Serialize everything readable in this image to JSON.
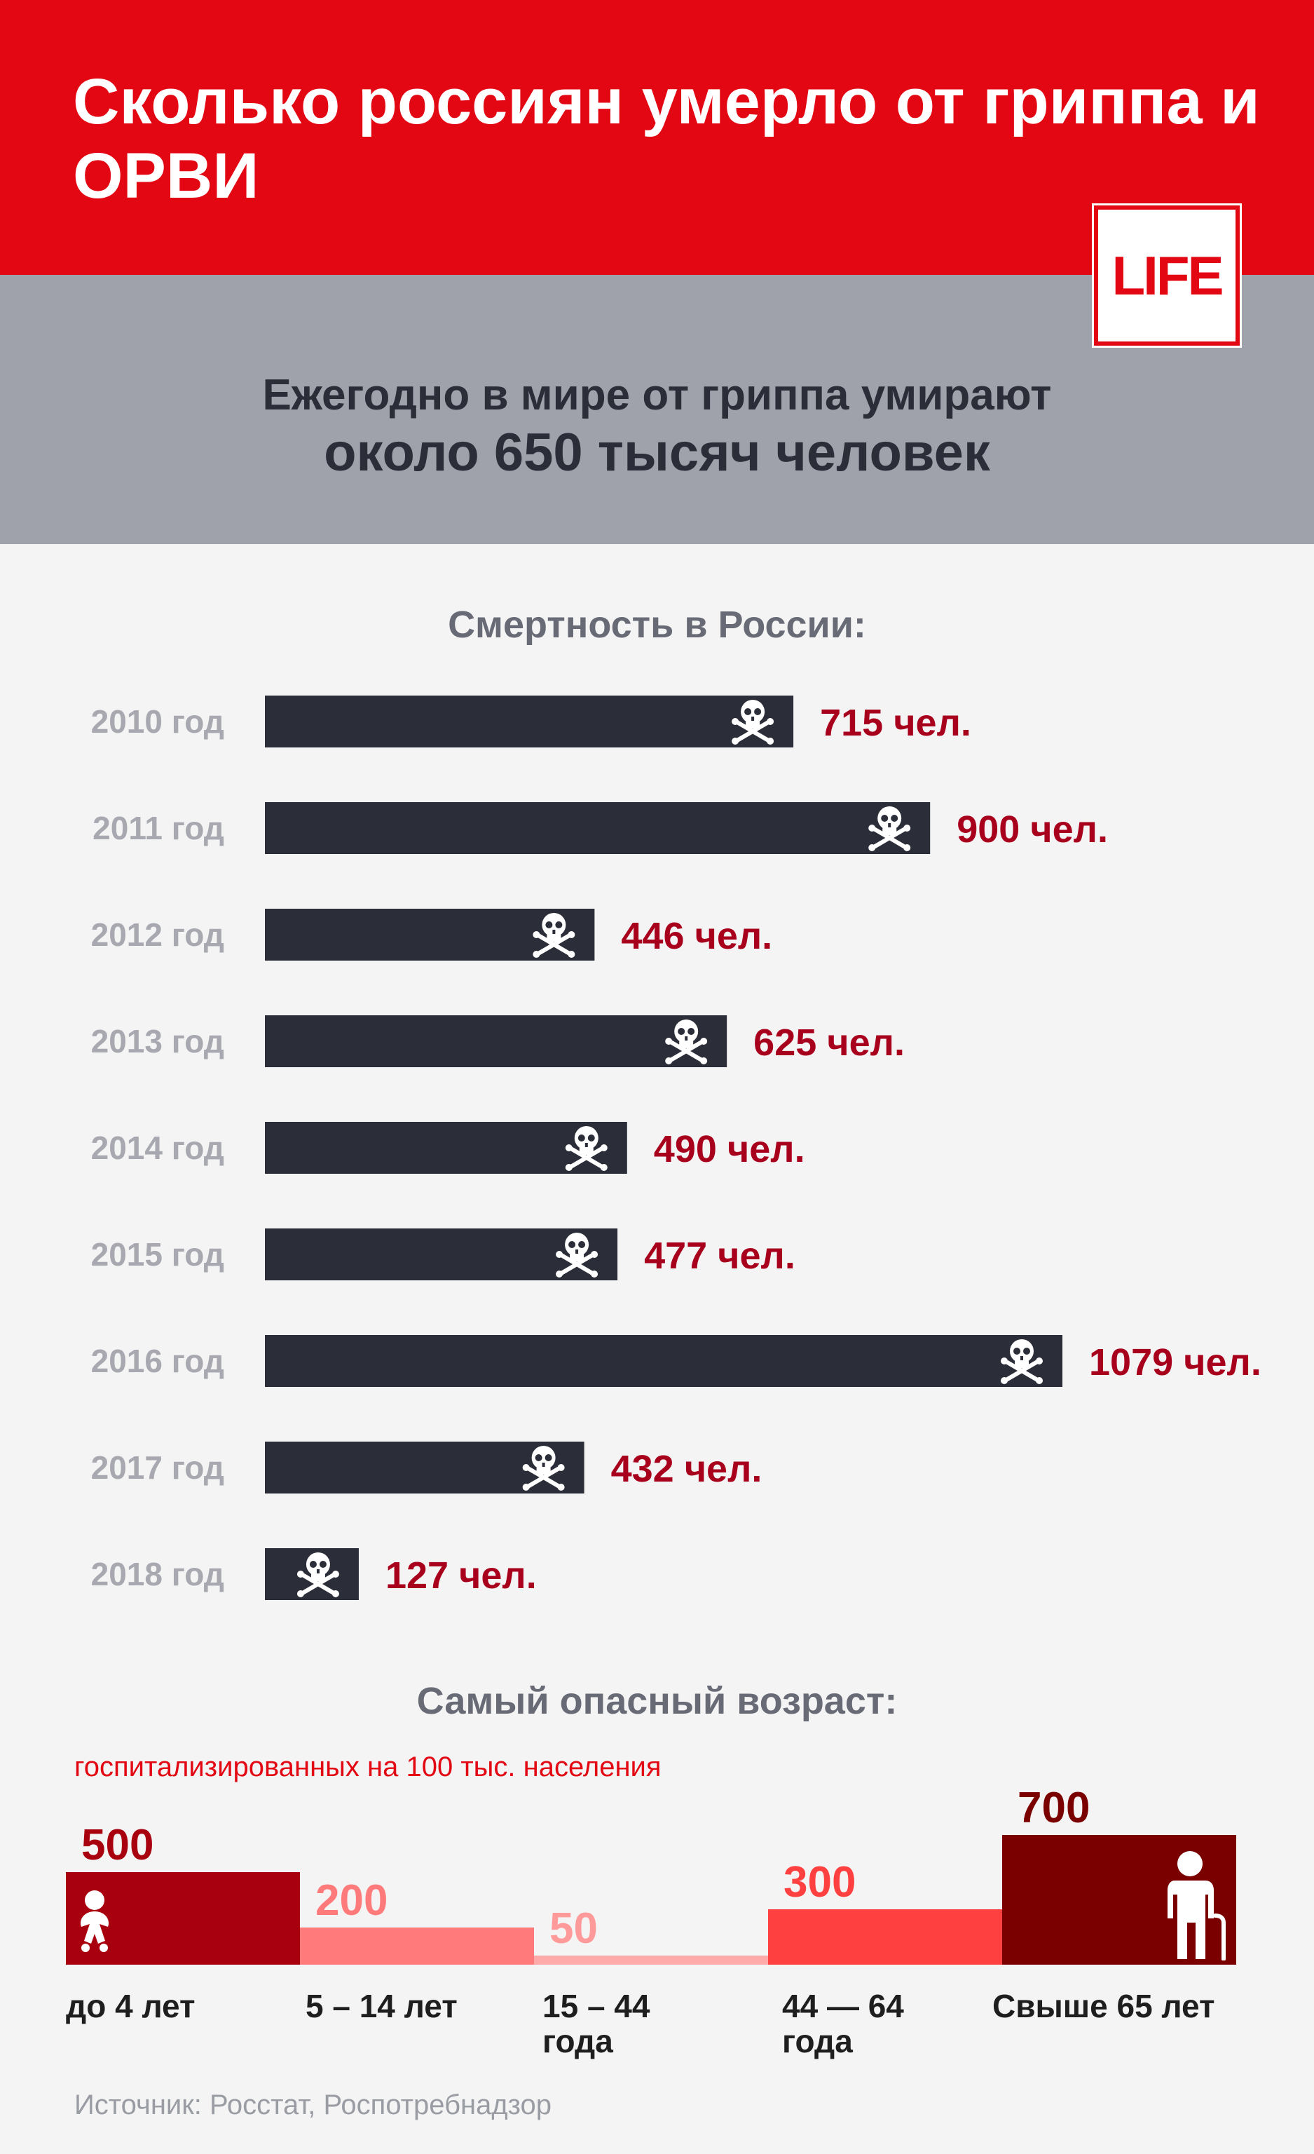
{
  "header": {
    "title": "Сколько россиян умерло от гриппа и ОРВИ"
  },
  "logo": {
    "text": "LIFE"
  },
  "intro": {
    "line1": "Ежегодно в мире от гриппа умирают",
    "line2": "около 650 тысяч человек"
  },
  "mortality": {
    "title": "Смертность в России:",
    "unit": "чел.",
    "icon": "skull-crossbones-icon"
  },
  "age": {
    "title": "Самый опасный возраст:",
    "subtitle": "госпитализированных на 100 тыс. населения"
  },
  "source": "Источник: Росстат, Роспотребнадзор",
  "colors": {
    "header_red": "#e30613",
    "band_gray": "#9fa1ab",
    "bar_dark": "#2b2d38",
    "value_red": "#a8001c"
  },
  "chart_data": [
    {
      "type": "bar",
      "orientation": "horizontal",
      "title": "Смертность в России:",
      "categories": [
        "2010 год",
        "2011 год",
        "2012 год",
        "2013 год",
        "2014 год",
        "2015 год",
        "2016 год",
        "2017 год",
        "2018 год"
      ],
      "values": [
        715,
        900,
        446,
        625,
        490,
        477,
        1079,
        432,
        127
      ],
      "value_labels": [
        "715 чел.",
        "900 чел.",
        "446 чел.",
        "625 чел.",
        "490 чел.",
        "477 чел.",
        "1079 чел.",
        "432 чел.",
        "127 чел."
      ]
    },
    {
      "type": "bar",
      "title": "Самый опасный возраст:",
      "subtitle": "госпитализированных на 100 тыс. населения",
      "categories": [
        "до 4 лет",
        "5 – 14 лет",
        "15 – 44 года",
        "44 — 64 года",
        "Свыше 65 лет"
      ],
      "values": [
        500,
        200,
        50,
        300,
        700
      ],
      "value_labels": [
        "500",
        "200",
        "50",
        "300",
        "700"
      ],
      "colors": [
        "#a8000f",
        "#ff7b7b",
        "#ffaaaa",
        "#ff4040",
        "#7a0000"
      ],
      "label_colors": [
        "#a8000f",
        "#ff7b7b",
        "#ff9a9a",
        "#ff4040",
        "#7a0000"
      ],
      "icons": [
        "baby-icon",
        "",
        "",
        "",
        "elderly-person-icon"
      ]
    }
  ]
}
